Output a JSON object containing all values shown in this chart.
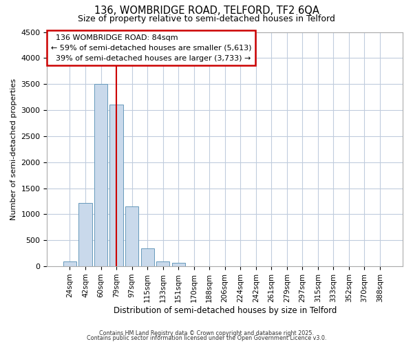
{
  "title1": "136, WOMBRIDGE ROAD, TELFORD, TF2 6QA",
  "title2": "Size of property relative to semi-detached houses in Telford",
  "xlabel": "Distribution of semi-detached houses by size in Telford",
  "ylabel": "Number of semi-detached properties",
  "bins": [
    "24sqm",
    "42sqm",
    "60sqm",
    "79sqm",
    "97sqm",
    "115sqm",
    "133sqm",
    "151sqm",
    "170sqm",
    "188sqm",
    "206sqm",
    "224sqm",
    "242sqm",
    "261sqm",
    "279sqm",
    "297sqm",
    "315sqm",
    "333sqm",
    "352sqm",
    "370sqm",
    "388sqm"
  ],
  "values": [
    90,
    1220,
    3500,
    3100,
    1150,
    340,
    90,
    65,
    0,
    0,
    0,
    0,
    0,
    0,
    0,
    0,
    0,
    0,
    0,
    0,
    0
  ],
  "property_label": "136 WOMBRIDGE ROAD: 84sqm",
  "pct_smaller": 59,
  "n_smaller": 5613,
  "pct_larger": 39,
  "n_larger": 3733,
  "bar_color": "#c9d9eb",
  "bar_edge_color": "#6699bb",
  "vline_color": "#cc0000",
  "vline_x": 3,
  "box_color": "#cc0000",
  "background_color": "#ffffff",
  "grid_color": "#c0ccdd",
  "ylim": [
    0,
    4500
  ],
  "yticks": [
    0,
    500,
    1000,
    1500,
    2000,
    2500,
    3000,
    3500,
    4000,
    4500
  ],
  "footnote1": "Contains HM Land Registry data © Crown copyright and database right 2025.",
  "footnote2": "Contains public sector information licensed under the Open Government Licence v3.0."
}
